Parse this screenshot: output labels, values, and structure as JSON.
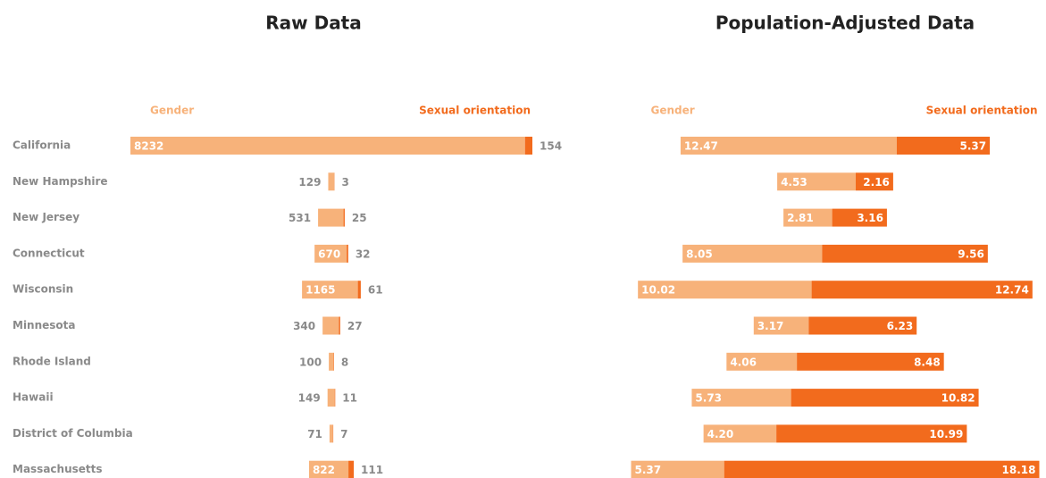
{
  "chart_data": [
    {
      "type": "bar",
      "title": "Raw Data",
      "categories": [
        "California",
        "New Hampshire",
        "New Jersey",
        "Connecticut",
        "Wisconsin",
        "Minnesota",
        "Rhode Island",
        "Hawaii",
        "District of Columbia",
        "Massachusetts"
      ],
      "series": [
        {
          "name": "Gender",
          "color": "#f7b27a",
          "values": [
            8232,
            129,
            531,
            670,
            1165,
            340,
            100,
            149,
            71,
            822
          ]
        },
        {
          "name": "Sexual orientation",
          "color": "#f26b1d",
          "values": [
            154,
            3,
            25,
            32,
            61,
            27,
            8,
            11,
            7,
            111
          ]
        }
      ]
    },
    {
      "type": "bar",
      "title": "Population-Adjusted Data",
      "series": [
        {
          "name": "Gender",
          "color": "#f7b27a",
          "values": [
            12.47,
            4.53,
            2.81,
            8.05,
            10.02,
            3.17,
            4.06,
            5.73,
            4.2,
            5.37
          ],
          "value_labels": [
            "12.47",
            "4.53",
            "2.81",
            "8.05",
            "10.02",
            "3.17",
            "4.06",
            "5.73",
            "4.20",
            "5.37"
          ]
        },
        {
          "name": "Sexual orientation",
          "color": "#f26b1d",
          "values": [
            5.37,
            2.16,
            3.16,
            9.56,
            12.74,
            6.23,
            8.48,
            10.82,
            10.99,
            18.18
          ]
        }
      ]
    }
  ]
}
